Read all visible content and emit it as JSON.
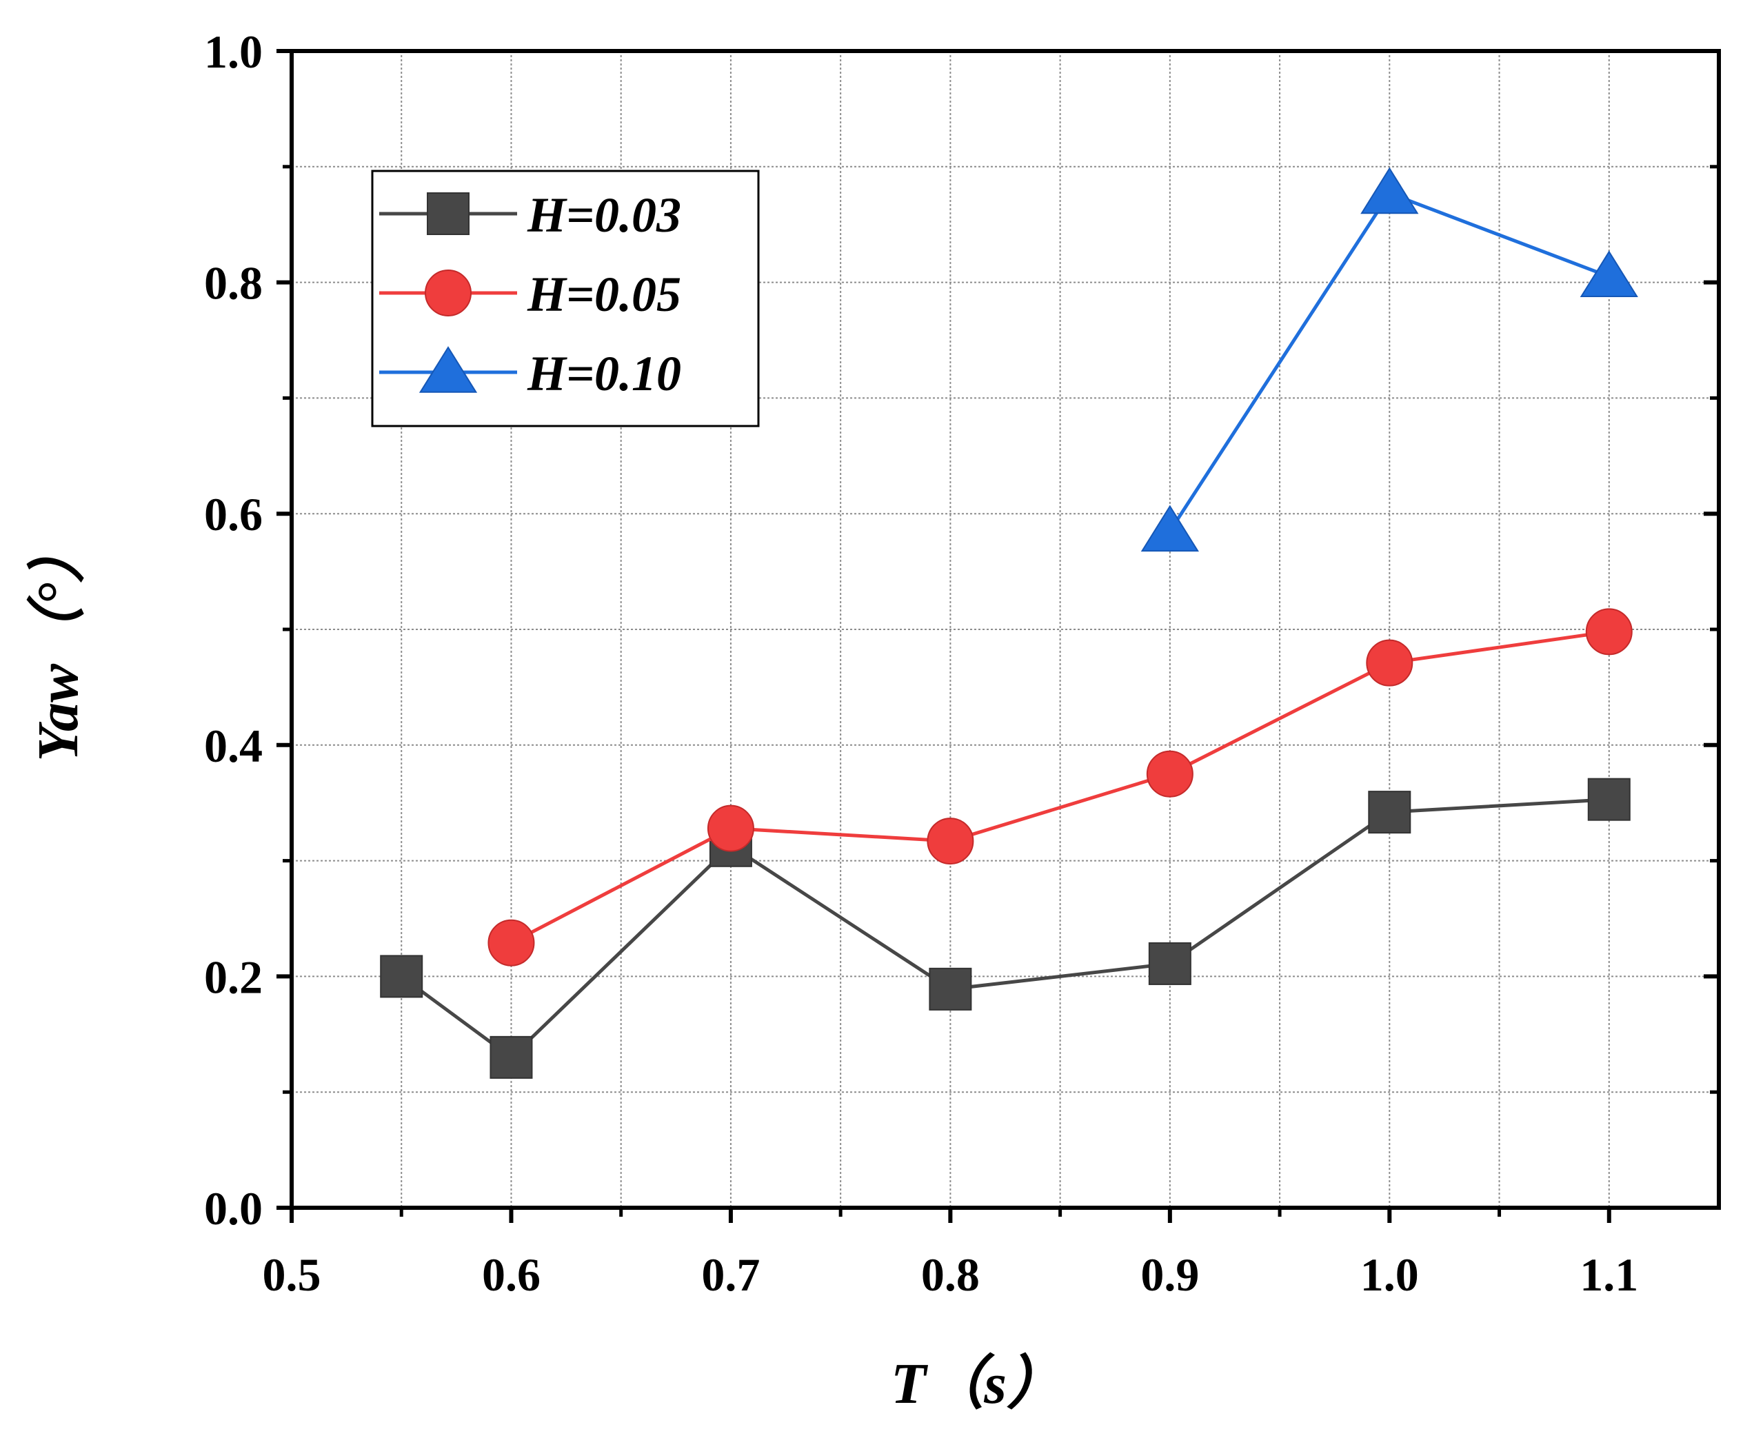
{
  "chart_data": {
    "type": "line",
    "title": "",
    "xlabel": "T（s）",
    "ylabel": "Yaw（°）",
    "xlim": [
      0.5,
      1.15
    ],
    "ylim": [
      0.0,
      1.0
    ],
    "xticks": [
      0.5,
      0.6,
      0.7,
      0.8,
      0.9,
      1.0,
      1.1
    ],
    "xtick_labels": [
      "0.5",
      "0.6",
      "0.7",
      "0.8",
      "0.9",
      "1.0",
      "1.1"
    ],
    "yticks": [
      0.0,
      0.2,
      0.4,
      0.6,
      0.8,
      1.0
    ],
    "ytick_labels": [
      "0.0",
      "0.2",
      "0.4",
      "0.6",
      "0.8",
      "1.0"
    ],
    "grid": true,
    "legend_position": "top-left",
    "series": [
      {
        "name": "H=0.03",
        "color": "#474747",
        "marker": "square",
        "x": [
          0.55,
          0.6,
          0.7,
          0.8,
          0.9,
          1.0,
          1.1
        ],
        "y": [
          0.2,
          0.13,
          0.313,
          0.189,
          0.211,
          0.342,
          0.353
        ]
      },
      {
        "name": "H=0.05",
        "color": "#ef3d3d",
        "marker": "circle",
        "x": [
          0.6,
          0.7,
          0.8,
          0.9,
          1.0,
          1.1
        ],
        "y": [
          0.229,
          0.328,
          0.317,
          0.375,
          0.471,
          0.498
        ]
      },
      {
        "name": "H=0.10",
        "color": "#1f6fdc",
        "marker": "triangle",
        "x": [
          0.9,
          1.0,
          1.1
        ],
        "y": [
          0.585,
          0.877,
          0.805
        ]
      }
    ]
  }
}
